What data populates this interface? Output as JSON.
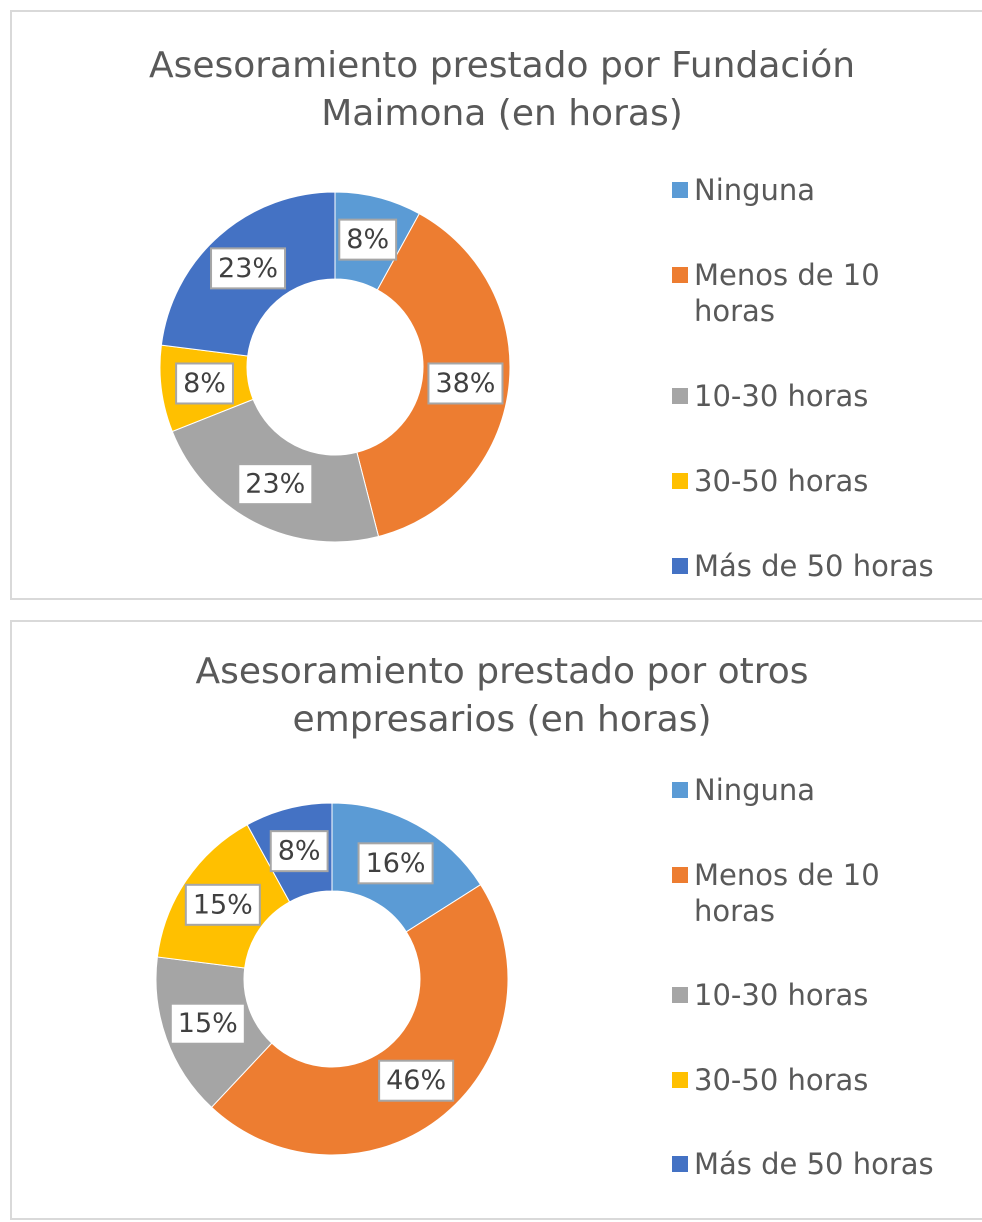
{
  "chart_data": [
    {
      "type": "donut",
      "title": "Asesoramiento prestado por Fundación Maimona (en horas)",
      "categories": [
        "Ninguna",
        "Menos de 10 horas",
        "10-30 horas",
        "30-50 horas",
        "Más de 50 horas"
      ],
      "values": [
        8,
        38,
        23,
        8,
        23
      ],
      "value_labels": [
        "8%",
        "38%",
        "23%",
        "8%",
        "23%"
      ],
      "colors": [
        "#5b9bd5",
        "#ed7d31",
        "#a5a5a5",
        "#ffc000",
        "#4472c4"
      ],
      "legend": "right"
    },
    {
      "type": "donut",
      "title": "Asesoramiento prestado por otros empresarios (en horas)",
      "categories": [
        "Ninguna",
        "Menos de 10 horas",
        "10-30 horas",
        "30-50 horas",
        "Más de 50 horas"
      ],
      "values": [
        16,
        46,
        15,
        15,
        8
      ],
      "value_labels": [
        "16%",
        "46%",
        "15%",
        "15%",
        "8%"
      ],
      "colors": [
        "#5b9bd5",
        "#ed7d31",
        "#a5a5a5",
        "#ffc000",
        "#4472c4"
      ],
      "legend": "right"
    }
  ]
}
